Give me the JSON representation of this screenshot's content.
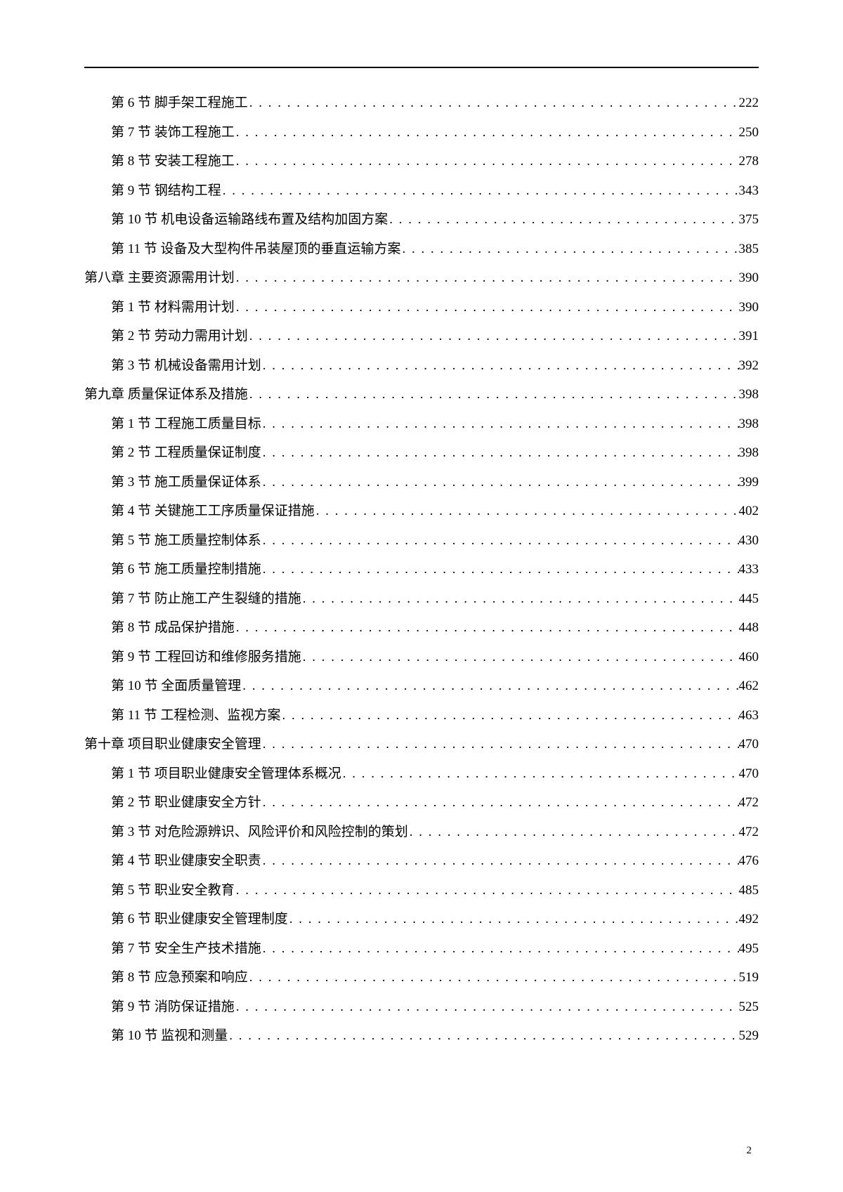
{
  "pageNumber": "2",
  "tocEntries": [
    {
      "level": 1,
      "label": "第 6 节 脚手架工程施工",
      "page": "222"
    },
    {
      "level": 1,
      "label": "第 7 节 装饰工程施工",
      "page": "250"
    },
    {
      "level": 1,
      "label": "第 8 节 安装工程施工",
      "page": "278"
    },
    {
      "level": 1,
      "label": "第 9 节 钢结构工程",
      "page": "343"
    },
    {
      "level": 1,
      "label": "第 10 节 机电设备运输路线布置及结构加固方案",
      "page": "375"
    },
    {
      "level": 1,
      "label": "第 11 节 设备及大型构件吊装屋顶的垂直运输方案",
      "page": "385"
    },
    {
      "level": 0,
      "label": "第八章 主要资源需用计划",
      "page": "390"
    },
    {
      "level": 1,
      "label": "第 1 节 材料需用计划",
      "page": "390"
    },
    {
      "level": 1,
      "label": "第 2 节 劳动力需用计划",
      "page": "391"
    },
    {
      "level": 1,
      "label": "第 3 节 机械设备需用计划",
      "page": "392"
    },
    {
      "level": 0,
      "label": "第九章 质量保证体系及措施",
      "page": "398"
    },
    {
      "level": 1,
      "label": "第 1 节 工程施工质量目标",
      "page": "398"
    },
    {
      "level": 1,
      "label": "第 2 节 工程质量保证制度",
      "page": "398"
    },
    {
      "level": 1,
      "label": "第 3 节 施工质量保证体系",
      "page": "399"
    },
    {
      "level": 1,
      "label": "第 4 节 关键施工工序质量保证措施",
      "page": "402"
    },
    {
      "level": 1,
      "label": "第 5 节 施工质量控制体系",
      "page": "430"
    },
    {
      "level": 1,
      "label": "第 6 节 施工质量控制措施",
      "page": "433"
    },
    {
      "level": 1,
      "label": "第 7 节 防止施工产生裂缝的措施",
      "page": "445"
    },
    {
      "level": 1,
      "label": "第 8 节 成品保护措施",
      "page": "448"
    },
    {
      "level": 1,
      "label": "第 9 节 工程回访和维修服务措施",
      "page": "460"
    },
    {
      "level": 1,
      "label": "第 10 节 全面质量管理",
      "page": "462"
    },
    {
      "level": 1,
      "label": "第 11 节 工程检测、监视方案",
      "page": "463"
    },
    {
      "level": 0,
      "label": "第十章 项目职业健康安全管理",
      "page": "470"
    },
    {
      "level": 1,
      "label": "第 1 节 项目职业健康安全管理体系概况",
      "page": "470"
    },
    {
      "level": 1,
      "label": "第 2 节 职业健康安全方针",
      "page": "472"
    },
    {
      "level": 1,
      "label": "第 3 节 对危险源辨识、风险评价和风险控制的策划",
      "page": "472"
    },
    {
      "level": 1,
      "label": "第 4 节 职业健康安全职责",
      "page": "476"
    },
    {
      "level": 1,
      "label": "第 5 节 职业安全教育",
      "page": "485"
    },
    {
      "level": 1,
      "label": "第 6 节 职业健康安全管理制度",
      "page": "492"
    },
    {
      "level": 1,
      "label": "第 7 节 安全生产技术措施",
      "page": "495"
    },
    {
      "level": 1,
      "label": "第 8 节 应急预案和响应",
      "page": "519"
    },
    {
      "level": 1,
      "label": "第 9 节 消防保证措施",
      "page": "525"
    },
    {
      "level": 1,
      "label": "第 10 节 监视和测量",
      "page": "529"
    }
  ]
}
